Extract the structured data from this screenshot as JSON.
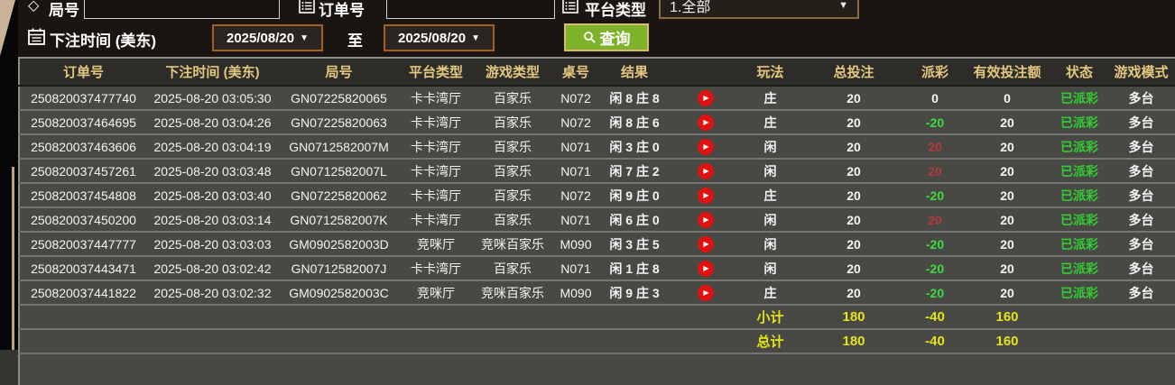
{
  "toolbar": {
    "round_label": "局号",
    "round_input_value": "",
    "order_label": "订单号",
    "order_input_value": "",
    "platform_label": "平台类型",
    "platform_value": "1.全部",
    "bet_time_label": "下注时间 (美东)",
    "date_from": "2025/08/20",
    "to_label": "至",
    "date_to": "2025/08/20",
    "query_label": "查询"
  },
  "icons": {
    "diamond": "◇ outline diamond before round-number label",
    "list": "bordered list glyph before order-number and platform-type labels",
    "calendar": "calendar glyph before bet-time label",
    "search": "magnifier in query button",
    "dropdown_arrow": "▼",
    "replay": "red circle with white play triangle in result column"
  },
  "colors": {
    "header_gold": "#e4c87e",
    "row_bg": "#484844",
    "status_green": "#33cc33",
    "payout_negative_green": "#3fda3f",
    "payout_positive_red": "#b43a3a",
    "summary_yellow": "#e4e416",
    "query_button_green": "#7db22a",
    "date_border_orange": "#a35f24"
  },
  "table": {
    "headers": [
      "订单号",
      "下注时间 (美东)",
      "局号",
      "平台类型",
      "游戏类型",
      "桌号",
      "结果",
      "",
      "玩法",
      "总投注",
      "派彩",
      "有效投注额",
      "状态",
      "游戏模式"
    ],
    "rows": [
      {
        "order_id": "250820037477740",
        "bet_time": "2025-08-20 03:05:30",
        "round_id": "GN07225820065",
        "platform": "卡卡湾厅",
        "game_type": "百家乐",
        "table_no": "N072",
        "result": "闲 8 庄 8",
        "play": "庄",
        "total_bet": "20",
        "payout": "0",
        "valid_bet": "0",
        "status": "已派彩",
        "mode": "多台"
      },
      {
        "order_id": "250820037464695",
        "bet_time": "2025-08-20 03:04:26",
        "round_id": "GN07225820063",
        "platform": "卡卡湾厅",
        "game_type": "百家乐",
        "table_no": "N072",
        "result": "闲 8 庄 6",
        "play": "庄",
        "total_bet": "20",
        "payout": "-20",
        "valid_bet": "20",
        "status": "已派彩",
        "mode": "多台"
      },
      {
        "order_id": "250820037463606",
        "bet_time": "2025-08-20 03:04:19",
        "round_id": "GN0712582007M",
        "platform": "卡卡湾厅",
        "game_type": "百家乐",
        "table_no": "N071",
        "result": "闲 3 庄 0",
        "play": "闲",
        "total_bet": "20",
        "payout": "20",
        "valid_bet": "20",
        "status": "已派彩",
        "mode": "多台"
      },
      {
        "order_id": "250820037457261",
        "bet_time": "2025-08-20 03:03:48",
        "round_id": "GN0712582007L",
        "platform": "卡卡湾厅",
        "game_type": "百家乐",
        "table_no": "N071",
        "result": "闲 7 庄 2",
        "play": "闲",
        "total_bet": "20",
        "payout": "20",
        "valid_bet": "20",
        "status": "已派彩",
        "mode": "多台"
      },
      {
        "order_id": "250820037454808",
        "bet_time": "2025-08-20 03:03:40",
        "round_id": "GN07225820062",
        "platform": "卡卡湾厅",
        "game_type": "百家乐",
        "table_no": "N072",
        "result": "闲 9 庄 0",
        "play": "庄",
        "total_bet": "20",
        "payout": "-20",
        "valid_bet": "20",
        "status": "已派彩",
        "mode": "多台"
      },
      {
        "order_id": "250820037450200",
        "bet_time": "2025-08-20 03:03:14",
        "round_id": "GN0712582007K",
        "platform": "卡卡湾厅",
        "game_type": "百家乐",
        "table_no": "N071",
        "result": "闲 6 庄 0",
        "play": "闲",
        "total_bet": "20",
        "payout": "20",
        "valid_bet": "20",
        "status": "已派彩",
        "mode": "多台"
      },
      {
        "order_id": "250820037447777",
        "bet_time": "2025-08-20 03:03:03",
        "round_id": "GM0902582003D",
        "platform": "竞咪厅",
        "game_type": "竞咪百家乐",
        "table_no": "M090",
        "result": "闲 3 庄 5",
        "play": "闲",
        "total_bet": "20",
        "payout": "-20",
        "valid_bet": "20",
        "status": "已派彩",
        "mode": "多台"
      },
      {
        "order_id": "250820037443471",
        "bet_time": "2025-08-20 03:02:42",
        "round_id": "GN0712582007J",
        "platform": "卡卡湾厅",
        "game_type": "百家乐",
        "table_no": "N071",
        "result": "闲 1 庄 8",
        "play": "闲",
        "total_bet": "20",
        "payout": "-20",
        "valid_bet": "20",
        "status": "已派彩",
        "mode": "多台"
      },
      {
        "order_id": "250820037441822",
        "bet_time": "2025-08-20 03:02:32",
        "round_id": "GM0902582003C",
        "platform": "竞咪厅",
        "game_type": "竞咪百家乐",
        "table_no": "M090",
        "result": "闲 9 庄 3",
        "play": "庄",
        "total_bet": "20",
        "payout": "-20",
        "valid_bet": "20",
        "status": "已派彩",
        "mode": "多台"
      }
    ],
    "subtotal": {
      "label": "小计",
      "total_bet": "180",
      "payout": "-40",
      "valid_bet": "160"
    },
    "total": {
      "label": "总计",
      "total_bet": "180",
      "payout": "-40",
      "valid_bet": "160"
    }
  }
}
